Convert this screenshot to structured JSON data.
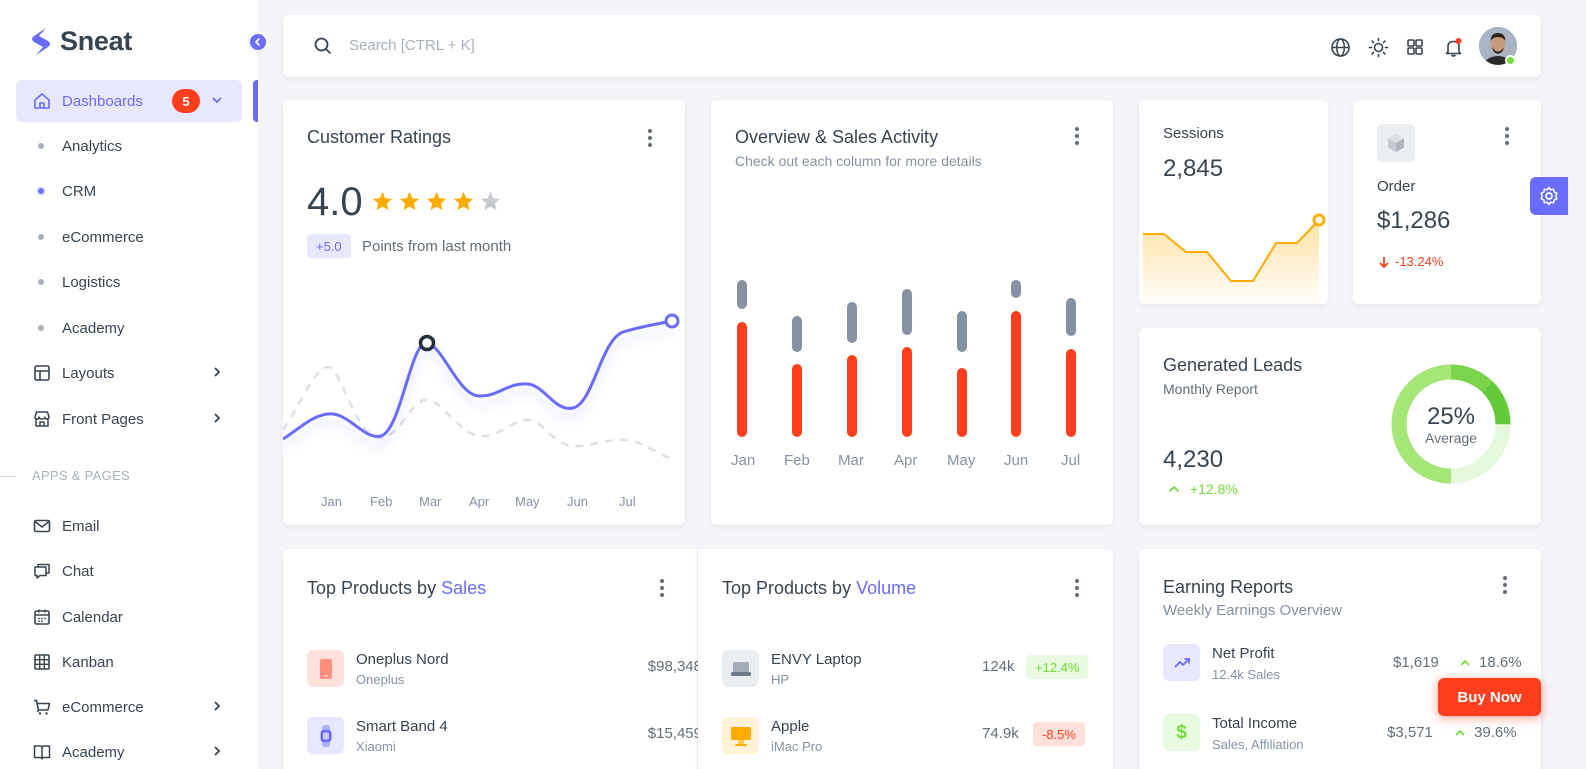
{
  "brand": {
    "name": "Sneat",
    "accent": "#696cff"
  },
  "sidebar": {
    "dashboards": {
      "label": "Dashboards",
      "badge": "5"
    },
    "dashboard_items": [
      {
        "label": "Analytics"
      },
      {
        "label": "CRM",
        "active": true
      },
      {
        "label": "eCommerce"
      },
      {
        "label": "Logistics"
      },
      {
        "label": "Academy"
      }
    ],
    "menu": [
      {
        "label": "Layouts",
        "icon": "layout-icon"
      },
      {
        "label": "Front Pages",
        "icon": "store-icon"
      }
    ],
    "section_header": "APPS & PAGES",
    "apps": [
      {
        "label": "Email",
        "icon": "mail-icon"
      },
      {
        "label": "Chat",
        "icon": "chat-icon"
      },
      {
        "label": "Calendar",
        "icon": "calendar-icon"
      },
      {
        "label": "Kanban",
        "icon": "grid-icon"
      },
      {
        "label": "eCommerce",
        "icon": "cart-icon"
      },
      {
        "label": "Academy",
        "icon": "book-icon"
      }
    ]
  },
  "navbar": {
    "search_placeholder": "Search [CTRL + K]"
  },
  "ratings": {
    "title": "Customer Ratings",
    "value": "4.0",
    "stars": 4,
    "max_stars": 5,
    "change": "+5.0",
    "change_text": "Points from last month",
    "months": [
      "Jan",
      "Feb",
      "Mar",
      "Apr",
      "May",
      "Jun",
      "Jul"
    ]
  },
  "overview": {
    "title": "Overview & Sales Activity",
    "subtitle": "Check out each column for more details",
    "months": [
      "Jan",
      "Feb",
      "Mar",
      "Apr",
      "May",
      "Jun",
      "Jul"
    ]
  },
  "sessions": {
    "label": "Sessions",
    "value": "2,845"
  },
  "order": {
    "label": "Order",
    "value": "$1,286",
    "change": "-13.24%"
  },
  "leads": {
    "title": "Generated Leads",
    "subtitle": "Monthly Report",
    "value": "4,230",
    "change": "+12.8%",
    "donut_pct": "25%",
    "donut_label": "Average",
    "donut_fraction": 0.25
  },
  "top_sales": {
    "title_prefix": "Top Products by",
    "title_accent": "Sales",
    "items": [
      {
        "name": "Oneplus Nord",
        "brand": "Oneplus",
        "price": "$98,348"
      },
      {
        "name": "Smart Band 4",
        "brand": "Xiaomi",
        "price": "$15,459"
      }
    ]
  },
  "top_volume": {
    "title_prefix": "Top Products by",
    "title_accent": "Volume",
    "items": [
      {
        "name": "ENVY Laptop",
        "brand": "HP",
        "qty": "124k",
        "change": "+12.4%"
      },
      {
        "name": "Apple",
        "brand": "iMac Pro",
        "qty": "74.9k",
        "change": "-8.5%"
      }
    ]
  },
  "earnings": {
    "title": "Earning Reports",
    "subtitle": "Weekly Earnings Overview",
    "items": [
      {
        "name": "Net Profit",
        "sub": "12.4k Sales",
        "amount": "$1,619",
        "pct": "18.6%"
      },
      {
        "name": "Total Income",
        "sub": "Sales, Affiliation",
        "amount": "$3,571",
        "pct": "39.6%"
      }
    ]
  },
  "buy_now": "Buy Now"
}
